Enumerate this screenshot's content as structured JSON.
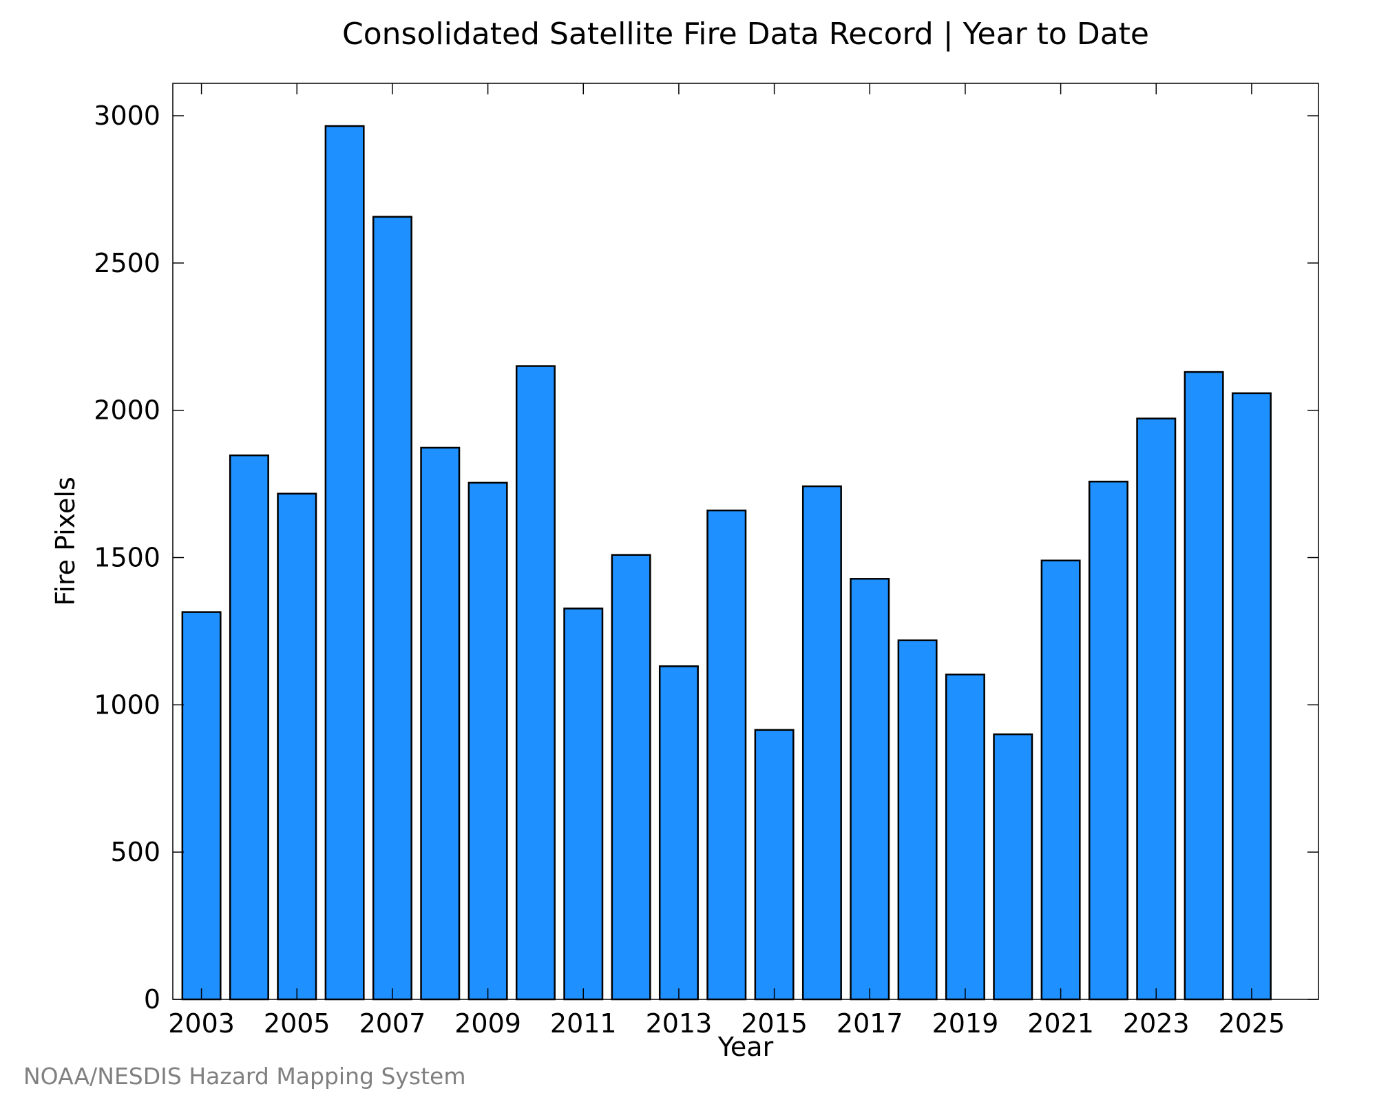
{
  "chart_data": {
    "type": "bar",
    "title": "Consolidated Satellite Fire Data Record | Year to Date",
    "xlabel": "Year",
    "ylabel": "Fire Pixels",
    "categories": [
      "2003",
      "2004",
      "2005",
      "2006",
      "2007",
      "2008",
      "2009",
      "2010",
      "2011",
      "2012",
      "2013",
      "2014",
      "2015",
      "2016",
      "2017",
      "2018",
      "2019",
      "2020",
      "2021",
      "2022",
      "2023",
      "2024",
      "2025"
    ],
    "values": [
      1315,
      1847,
      1717,
      2965,
      2657,
      1873,
      1754,
      2150,
      1327,
      1509,
      1131,
      1660,
      915,
      1742,
      1428,
      1219,
      1103,
      900,
      1490,
      1758,
      1972,
      2130,
      2058
    ],
    "x_tick_labels": [
      "2003",
      "2005",
      "2007",
      "2009",
      "2011",
      "2013",
      "2015",
      "2017",
      "2019",
      "2021",
      "2023",
      "2025"
    ],
    "y_tick_labels": [
      "0",
      "500",
      "1000",
      "1500",
      "2000",
      "2500",
      "3000"
    ],
    "y_ticks": [
      0,
      500,
      1000,
      1500,
      2000,
      2500,
      3000
    ],
    "ylim": [
      0,
      3110
    ],
    "xlim": [
      2002.4,
      2026.4
    ],
    "grid": false,
    "bar_color": "#1E90FF",
    "bar_edge_color": "#000000"
  },
  "footer": {
    "credit": "NOAA/NESDIS Hazard Mapping System"
  }
}
